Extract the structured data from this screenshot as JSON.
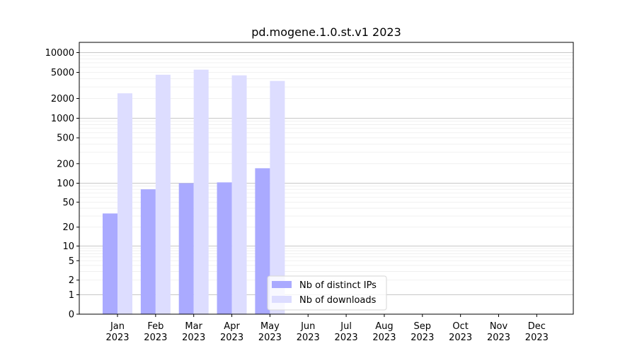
{
  "chart_data": {
    "type": "bar",
    "title": "pd.mogene.1.0.st.v1 2023",
    "xlabel": "",
    "ylabel": "",
    "y_scale": "symlog",
    "grid": "horizontal",
    "legend_position": "bottom-center",
    "categories": [
      [
        "Jan",
        "2023"
      ],
      [
        "Feb",
        "2023"
      ],
      [
        "Mar",
        "2023"
      ],
      [
        "Apr",
        "2023"
      ],
      [
        "May",
        "2023"
      ],
      [
        "Jun",
        "2023"
      ],
      [
        "Jul",
        "2023"
      ],
      [
        "Aug",
        "2023"
      ],
      [
        "Sep",
        "2023"
      ],
      [
        "Oct",
        "2023"
      ],
      [
        "Nov",
        "2023"
      ],
      [
        "Dec",
        "2023"
      ]
    ],
    "y_ticks": [
      "0",
      "1",
      "2",
      "5",
      "10",
      "20",
      "50",
      "100",
      "200",
      "500",
      "1000",
      "2000",
      "5000",
      "10000"
    ],
    "ylim": [
      0,
      15000
    ],
    "series": [
      {
        "name": "Nb of distinct IPs",
        "color": "#aaaaff",
        "values": [
          33,
          80,
          100,
          103,
          170,
          null,
          null,
          null,
          null,
          null,
          null,
          null
        ]
      },
      {
        "name": "Nb of downloads",
        "color": "#ddddff",
        "values": [
          2400,
          4600,
          5500,
          4500,
          3700,
          null,
          null,
          null,
          null,
          null,
          null,
          null
        ]
      }
    ]
  }
}
